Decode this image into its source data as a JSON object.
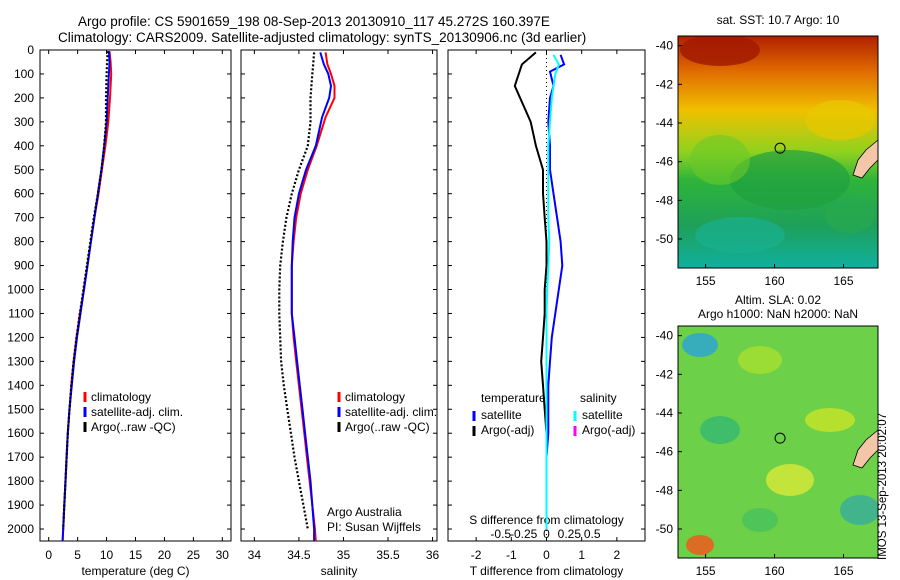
{
  "header": {
    "line1": "Argo profile: CS 5901659_198 08-Sep-2013 20130910_117 45.272S 160.397E",
    "line2": "Climatology: CARS2009. Satellite-adjusted climatology: synTS_20130906.nc (3d earlier)"
  },
  "stamp": "IMOS 13-Sep-2013 20:02:07",
  "colors": {
    "climatology": "#ff0000",
    "satellite": "#0000ff",
    "argo": "#000000",
    "salinity_satellite": "#00ffff",
    "salinity_argo": "#ff00ff"
  },
  "chart_data": [
    {
      "id": "temperature",
      "type": "line",
      "xlabel": "temperature (deg C)",
      "ylabel": "",
      "xlim": [
        -1.5,
        31.5
      ],
      "ylim": [
        2050,
        0
      ],
      "xticks": [
        0,
        5,
        10,
        15,
        20,
        25,
        30
      ],
      "yticks": [
        0,
        100,
        200,
        300,
        400,
        500,
        600,
        700,
        800,
        900,
        1000,
        1100,
        1200,
        1300,
        1400,
        1500,
        1600,
        1700,
        1800,
        1900,
        2000
      ],
      "legend_position": "lower-right",
      "legend": [
        "climatology",
        "satellite-adj. clim.",
        "Argo(..raw -QC)"
      ],
      "series": [
        {
          "name": "climatology",
          "color": "#ff0000",
          "style": "solid",
          "points": [
            [
              10.5,
              5
            ],
            [
              10.7,
              50
            ],
            [
              10.8,
              100
            ],
            [
              10.6,
              200
            ],
            [
              10.3,
              300
            ],
            [
              9.8,
              400
            ],
            [
              9.2,
              500
            ],
            [
              8.6,
              600
            ],
            [
              7.9,
              700
            ],
            [
              7.3,
              800
            ],
            [
              6.7,
              900
            ],
            [
              6.1,
              1000
            ],
            [
              5.4,
              1100
            ],
            [
              4.8,
              1200
            ],
            [
              4.3,
              1300
            ],
            [
              3.9,
              1400
            ],
            [
              3.6,
              1500
            ],
            [
              3.3,
              1600
            ],
            [
              3.1,
              1700
            ],
            [
              2.9,
              1800
            ],
            [
              2.7,
              1900
            ],
            [
              2.5,
              2000
            ],
            [
              2.4,
              2050
            ]
          ]
        },
        {
          "name": "satellite-adj. clim.",
          "color": "#0000ff",
          "style": "solid",
          "points": [
            [
              10.4,
              5
            ],
            [
              10.5,
              50
            ],
            [
              10.4,
              100
            ],
            [
              10.2,
              200
            ],
            [
              10.0,
              300
            ],
            [
              9.6,
              400
            ],
            [
              9.1,
              500
            ],
            [
              8.5,
              600
            ],
            [
              7.9,
              700
            ],
            [
              7.3,
              800
            ],
            [
              6.7,
              900
            ],
            [
              6.1,
              1000
            ],
            [
              5.5,
              1100
            ],
            [
              4.9,
              1200
            ],
            [
              4.4,
              1300
            ],
            [
              4.0,
              1400
            ],
            [
              3.6,
              1500
            ],
            [
              3.3,
              1600
            ],
            [
              3.1,
              1700
            ],
            [
              2.9,
              1800
            ],
            [
              2.7,
              1900
            ],
            [
              2.5,
              2000
            ],
            [
              2.4,
              2050
            ]
          ]
        },
        {
          "name": "Argo(..raw -QC)",
          "color": "#000000",
          "style": "dots",
          "points": [
            [
              10.2,
              5
            ],
            [
              10.1,
              50
            ],
            [
              10.0,
              100
            ],
            [
              9.9,
              200
            ],
            [
              9.9,
              300
            ],
            [
              9.6,
              400
            ],
            [
              9.1,
              500
            ],
            [
              8.5,
              600
            ],
            [
              7.8,
              700
            ],
            [
              7.2,
              800
            ],
            [
              6.6,
              900
            ],
            [
              6.0,
              1000
            ],
            [
              5.4,
              1100
            ],
            [
              4.8,
              1200
            ],
            [
              4.3,
              1300
            ],
            [
              3.9,
              1400
            ],
            [
              3.6,
              1500
            ],
            [
              3.3,
              1600
            ],
            [
              3.1,
              1700
            ],
            [
              2.9,
              1800
            ],
            [
              2.7,
              1900
            ],
            [
              2.5,
              2000
            ]
          ]
        }
      ]
    },
    {
      "id": "salinity",
      "type": "line",
      "xlabel": "salinity",
      "ylabel": "",
      "xlim": [
        33.85,
        36.05
      ],
      "ylim": [
        2050,
        0
      ],
      "xticks": [
        34,
        34.5,
        35,
        35.5,
        36
      ],
      "xticklabels": [
        "34",
        "34.5",
        "35",
        "35.5",
        "36"
      ],
      "legend_position": "middle-right",
      "legend": [
        "climatology",
        "satellite-adj. clim.",
        "Argo(..raw -QC)"
      ],
      "annotations": [
        "Argo Australia",
        "PI: Susan Wijffels"
      ],
      "series": [
        {
          "name": "climatology",
          "color": "#ff0000",
          "style": "solid",
          "points": [
            [
              34.8,
              10
            ],
            [
              34.82,
              60
            ],
            [
              34.86,
              100
            ],
            [
              34.9,
              150
            ],
            [
              34.9,
              200
            ],
            [
              34.8,
              280
            ],
            [
              34.7,
              400
            ],
            [
              34.6,
              500
            ],
            [
              34.52,
              600
            ],
            [
              34.47,
              700
            ],
            [
              34.44,
              800
            ],
            [
              34.42,
              900
            ],
            [
              34.42,
              1000
            ],
            [
              34.42,
              1100
            ],
            [
              34.44,
              1200
            ],
            [
              34.47,
              1300
            ],
            [
              34.5,
              1400
            ],
            [
              34.53,
              1500
            ],
            [
              34.56,
              1600
            ],
            [
              34.59,
              1700
            ],
            [
              34.62,
              1800
            ],
            [
              34.65,
              1900
            ],
            [
              34.68,
              2000
            ],
            [
              34.69,
              2050
            ]
          ]
        },
        {
          "name": "satellite-adj. clim.",
          "color": "#0000ff",
          "style": "solid",
          "points": [
            [
              34.74,
              10
            ],
            [
              34.78,
              60
            ],
            [
              34.83,
              100
            ],
            [
              34.86,
              150
            ],
            [
              34.84,
              200
            ],
            [
              34.76,
              280
            ],
            [
              34.69,
              400
            ],
            [
              34.58,
              500
            ],
            [
              34.5,
              600
            ],
            [
              34.45,
              700
            ],
            [
              34.43,
              800
            ],
            [
              34.42,
              900
            ],
            [
              34.42,
              1000
            ],
            [
              34.42,
              1100
            ],
            [
              34.45,
              1200
            ],
            [
              34.48,
              1300
            ],
            [
              34.51,
              1400
            ],
            [
              34.54,
              1500
            ],
            [
              34.57,
              1600
            ],
            [
              34.6,
              1700
            ],
            [
              34.63,
              1800
            ],
            [
              34.65,
              1900
            ],
            [
              34.67,
              2000
            ],
            [
              34.67,
              2050
            ]
          ]
        },
        {
          "name": "Argo(..raw -QC)",
          "color": "#000000",
          "style": "dots",
          "points": [
            [
              34.67,
              10
            ],
            [
              34.66,
              60
            ],
            [
              34.65,
              100
            ],
            [
              34.63,
              200
            ],
            [
              34.63,
              300
            ],
            [
              34.6,
              400
            ],
            [
              34.5,
              500
            ],
            [
              34.42,
              600
            ],
            [
              34.36,
              700
            ],
            [
              34.32,
              800
            ],
            [
              34.29,
              900
            ],
            [
              34.28,
              1000
            ],
            [
              34.28,
              1100
            ],
            [
              34.29,
              1200
            ],
            [
              34.3,
              1300
            ],
            [
              34.33,
              1400
            ],
            [
              34.37,
              1500
            ],
            [
              34.41,
              1600
            ],
            [
              34.45,
              1700
            ],
            [
              34.5,
              1800
            ],
            [
              34.55,
              1900
            ],
            [
              34.6,
              2000
            ]
          ]
        }
      ]
    },
    {
      "id": "difference",
      "type": "line",
      "xlabel": "T difference from climatology",
      "xlabel2": "S difference from climatology",
      "ylabel": "",
      "xlim": [
        -2.8,
        2.8
      ],
      "ylim": [
        2050,
        0
      ],
      "xticks": [
        -2,
        -1,
        0,
        1,
        2
      ],
      "xticks2": [
        -0.5,
        -0.25,
        0,
        0.25,
        0.5
      ],
      "xticklabels2": [
        "-0.5",
        "-0.25",
        "0",
        "0.25",
        "0.5"
      ],
      "legend_position": "middle",
      "legend_headers": [
        "temperature",
        "salinity"
      ],
      "legend_temperature": [
        "satellite",
        "Argo(-adj)"
      ],
      "legend_salinity": [
        "satellite",
        "Argo(-adj)"
      ],
      "series": [
        {
          "name": "temperature satellite",
          "color": "#0000ff",
          "style": "solid",
          "points": [
            [
              0.4,
              20
            ],
            [
              0.5,
              60
            ],
            [
              0.1,
              90
            ],
            [
              0.2,
              150
            ],
            [
              0.1,
              200
            ],
            [
              0.05,
              300
            ],
            [
              0.1,
              400
            ],
            [
              0.1,
              500
            ],
            [
              0.2,
              600
            ],
            [
              0.3,
              700
            ],
            [
              0.4,
              800
            ],
            [
              0.45,
              900
            ],
            [
              0.35,
              1000
            ],
            [
              0.25,
              1100
            ],
            [
              0.15,
              1200
            ],
            [
              0.1,
              1300
            ],
            [
              0.05,
              1400
            ],
            [
              0.05,
              1500
            ],
            [
              0.05,
              1600
            ],
            [
              0,
              1700
            ],
            [
              0,
              1800
            ],
            [
              0,
              1900
            ],
            [
              0,
              2000
            ]
          ]
        },
        {
          "name": "temperature Argo(-adj)",
          "color": "#000000",
          "style": "solid",
          "points": [
            [
              -0.3,
              10
            ],
            [
              -0.7,
              60
            ],
            [
              -0.9,
              150
            ],
            [
              -0.6,
              250
            ],
            [
              -0.45,
              300
            ],
            [
              -0.3,
              400
            ],
            [
              -0.1,
              500
            ],
            [
              -0.1,
              600
            ],
            [
              -0.05,
              700
            ],
            [
              0,
              800
            ],
            [
              0,
              900
            ],
            [
              -0.05,
              1000
            ],
            [
              -0.05,
              1100
            ],
            [
              -0.1,
              1200
            ],
            [
              -0.15,
              1300
            ],
            [
              -0.1,
              1400
            ],
            [
              -0.05,
              1500
            ],
            [
              0,
              1600
            ],
            [
              0,
              1700
            ],
            [
              0,
              1800
            ],
            [
              0,
              1900
            ],
            [
              0,
              2000
            ]
          ]
        },
        {
          "name": "salinity satellite",
          "color": "#00ffff",
          "style": "solid",
          "points": [
            [
              0.2,
              20
            ],
            [
              0.35,
              60
            ],
            [
              0.25,
              100
            ],
            [
              0.15,
              200
            ],
            [
              0.1,
              300
            ],
            [
              0.05,
              400
            ],
            [
              0.05,
              500
            ],
            [
              0.05,
              600
            ],
            [
              0.05,
              700
            ],
            [
              0.08,
              800
            ],
            [
              0.05,
              900
            ],
            [
              0.02,
              1000
            ],
            [
              0,
              1100
            ],
            [
              0,
              1200
            ],
            [
              0,
              1300
            ],
            [
              0,
              1400
            ],
            [
              0,
              1500
            ],
            [
              0,
              1600
            ],
            [
              0,
              1700
            ],
            [
              0,
              1800
            ],
            [
              0,
              1900
            ],
            [
              0,
              2000
            ]
          ]
        },
        {
          "name": "salinity Argo(-adj)",
          "color": "#ff00ff",
          "style": "solid",
          "points": []
        }
      ]
    },
    {
      "id": "sst_map",
      "type": "heatmap",
      "title": "sat. SST: 10.7 Argo: 10",
      "xlim": [
        153,
        167.5
      ],
      "ylim": [
        -51.5,
        -39.5
      ],
      "xticks": [
        155,
        160,
        165
      ],
      "yticks": [
        -40,
        -42,
        -44,
        -46,
        -48,
        -50
      ],
      "marker": [
        160.4,
        -45.3
      ]
    },
    {
      "id": "sla_map",
      "type": "heatmap",
      "title": "Altim. SLA: 0.02",
      "title2": "Argo h1000: NaN h2000: NaN",
      "xlim": [
        153,
        167.5
      ],
      "ylim": [
        -51.5,
        -39.5
      ],
      "xticks": [
        155,
        160,
        165
      ],
      "yticks": [
        -40,
        -42,
        -44,
        -46,
        -48,
        -50
      ],
      "marker": [
        160.4,
        -45.3
      ]
    }
  ]
}
